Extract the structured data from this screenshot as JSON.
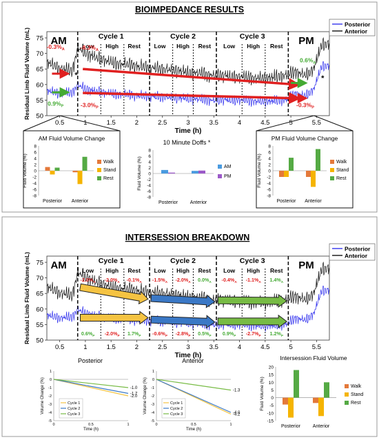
{
  "panels": {
    "top_title": "BIOIMPEDANCE RESULTS",
    "bottom_title": "INTERSESSION BREAKDOWN"
  },
  "legend": {
    "posterior": "Posterior",
    "anterior": "Anterior"
  },
  "colors": {
    "posterior": "#3333ee",
    "anterior": "#111111",
    "red": "#e02020",
    "green": "#44aa33",
    "walk": "#e4793a",
    "stand": "#f5b400",
    "rest": "#55aa44",
    "am": "#4a9be0",
    "pm": "#9b59c8",
    "cycle1": "#f5c342",
    "cycle2": "#3a78c6",
    "cycle3": "#77bb44"
  },
  "main_chart": {
    "ylabel": "Residual Limb Fluid Volume (mL)",
    "xlabel": "Time (h)",
    "yticks": [
      "50",
      "55",
      "60",
      "65",
      "70",
      "75"
    ],
    "xticks": [
      "0.5",
      "1",
      "1.5",
      "2",
      "2.5",
      "3",
      "3.5",
      "4",
      "4.5",
      "5",
      "5.5"
    ],
    "session_labels": {
      "am": "AM",
      "pm": "PM"
    },
    "cycles": [
      {
        "name": "Cycle 1",
        "phases": [
          "Low",
          "High",
          "Rest"
        ]
      },
      {
        "name": "Cycle 2",
        "phases": [
          "Low",
          "High",
          "Rest"
        ]
      },
      {
        "name": "Cycle 3",
        "phases": [
          "Low",
          "High",
          "Rest"
        ]
      }
    ],
    "star": "*"
  },
  "top_annotations": {
    "am_anterior": "-0.3%",
    "am_anterior_sub": "A",
    "am_posterior": "0.9%",
    "am_posterior_sub": "P",
    "c1_anterior": "-8.3%",
    "c1_anterior_sub": "A",
    "c1_posterior": "-3.0%",
    "c1_posterior_sub": "P",
    "pm_anterior": "0.6%",
    "pm_anterior_sub": "A",
    "pm_posterior": "-0.3%",
    "pm_posterior_sub": "P"
  },
  "bottom_annotations": {
    "upper": [
      {
        "text": "-2.0%",
        "sub": "A",
        "color": "red"
      },
      {
        "text": "-2.0%",
        "sub": "A",
        "color": "red"
      },
      {
        "text": "-0.1%",
        "sub": "A",
        "color": "red"
      },
      {
        "text": "-1.5%",
        "sub": "A",
        "color": "red"
      },
      {
        "text": "-2.0%",
        "sub": "A",
        "color": "red"
      },
      {
        "text": "0.0%",
        "sub": "A",
        "color": "green"
      },
      {
        "text": "-0.4%",
        "sub": "A",
        "color": "red"
      },
      {
        "text": "-1.1%",
        "sub": "A",
        "color": "red"
      },
      {
        "text": "1.4%",
        "sub": "A",
        "color": "green"
      }
    ],
    "lower": [
      {
        "text": "0.6%",
        "sub": "P",
        "color": "green"
      },
      {
        "text": "-2.0%",
        "sub": "P",
        "color": "red"
      },
      {
        "text": "1.7%",
        "sub": "P",
        "color": "green"
      },
      {
        "text": "-0.6%",
        "sub": "P",
        "color": "red"
      },
      {
        "text": "-2.8%",
        "sub": "P",
        "color": "red"
      },
      {
        "text": "0.5%",
        "sub": "P",
        "color": "green"
      },
      {
        "text": "0.9%",
        "sub": "P",
        "color": "green"
      },
      {
        "text": "-2.7%",
        "sub": "P",
        "color": "red"
      },
      {
        "text": "1.2%",
        "sub": "P",
        "color": "green"
      }
    ]
  },
  "chart_data": [
    {
      "type": "line",
      "title": "BIOIMPEDANCE RESULTS",
      "xlabel": "Time (h)",
      "ylabel": "Residual Limb Fluid Volume (mL)",
      "xlim": [
        0.25,
        5.75
      ],
      "ylim": [
        50,
        77
      ],
      "series": [
        {
          "name": "Posterior",
          "x": [
            0.3,
            0.5,
            0.75,
            0.85,
            1.0,
            1.5,
            2.0,
            2.5,
            3.0,
            3.5,
            4.0,
            4.5,
            4.9,
            5.1,
            5.3,
            5.45,
            5.6
          ],
          "y": [
            58,
            57,
            57.5,
            60,
            58.5,
            57,
            56.5,
            56,
            55.5,
            55,
            55,
            54.5,
            55,
            57,
            56.5,
            58.5,
            66
          ]
        },
        {
          "name": "Anterior",
          "x": [
            0.3,
            0.5,
            0.75,
            0.85,
            1.0,
            1.5,
            2.0,
            2.5,
            3.0,
            3.5,
            4.0,
            4.5,
            4.9,
            5.1,
            5.3,
            5.45,
            5.6
          ],
          "y": [
            67,
            65,
            64.5,
            72,
            70,
            67,
            66,
            65,
            64,
            63,
            62.5,
            62,
            63,
            64,
            63,
            65,
            73
          ]
        }
      ]
    },
    {
      "type": "bar",
      "title": "AM Fluid Volume Change",
      "ylabel": "Fluid Volume (%)",
      "ylim": [
        -8,
        8
      ],
      "yticks": [
        "8",
        "6",
        "4",
        "2",
        "0",
        "-2",
        "-4",
        "-6",
        "-8"
      ],
      "categories": [
        "Posterior",
        "Anterior"
      ],
      "series": [
        {
          "name": "Walk",
          "values": [
            1.2,
            -0.5
          ]
        },
        {
          "name": "Stand",
          "values": [
            -1.2,
            -4.3
          ]
        },
        {
          "name": "Rest",
          "values": [
            1.0,
            4.5
          ]
        }
      ]
    },
    {
      "type": "bar",
      "title": "10 Minute Doffs",
      "star": "*",
      "ylabel": "Fluid Volume (%)",
      "ylim": [
        -8,
        8
      ],
      "yticks": [
        "8",
        "6",
        "4",
        "2",
        "0",
        "-2",
        "-4",
        "-6",
        "-8"
      ],
      "categories": [
        "Posterior",
        "Anterior"
      ],
      "series": [
        {
          "name": "AM",
          "values": [
            1.2,
            0.9
          ]
        },
        {
          "name": "PM",
          "values": [
            0.3,
            1.0
          ]
        }
      ]
    },
    {
      "type": "bar",
      "title": "PM Fluid Volume Change",
      "ylabel": "Fluid Volume (%)",
      "ylim": [
        -8,
        8
      ],
      "yticks": [
        "8",
        "6",
        "4",
        "2",
        "0",
        "-2",
        "-4",
        "-6",
        "-8"
      ],
      "categories": [
        "Posterior",
        "Anterior"
      ],
      "series": [
        {
          "name": "Walk",
          "values": [
            -2.0,
            -2.0
          ]
        },
        {
          "name": "Stand",
          "values": [
            -2.0,
            -5.2
          ]
        },
        {
          "name": "Rest",
          "values": [
            4.2,
            7.0
          ]
        }
      ]
    },
    {
      "type": "line",
      "title": "INTERSESSION BREAKDOWN",
      "xlabel": "Time (h)",
      "ylabel": "Residual Limb Fluid Volume (mL)",
      "xlim": [
        0.25,
        5.75
      ],
      "ylim": [
        50,
        77
      ],
      "series": [
        {
          "name": "Posterior",
          "x": [
            0.3,
            0.5,
            0.75,
            0.85,
            1.0,
            1.5,
            2.0,
            2.5,
            3.0,
            3.5,
            4.0,
            4.5,
            4.9,
            5.1,
            5.3,
            5.45,
            5.6
          ],
          "y": [
            58,
            57,
            57.5,
            60,
            58.5,
            57,
            56.5,
            56,
            55.5,
            55,
            55,
            54.5,
            55,
            57,
            56.5,
            58.5,
            66
          ]
        },
        {
          "name": "Anterior",
          "x": [
            0.3,
            0.5,
            0.75,
            0.85,
            1.0,
            1.5,
            2.0,
            2.5,
            3.0,
            3.5,
            4.0,
            4.5,
            4.9,
            5.1,
            5.3,
            5.45,
            5.6
          ],
          "y": [
            67,
            65,
            64.5,
            72,
            70,
            67,
            66,
            65,
            64,
            63,
            62.5,
            62,
            63,
            64,
            63,
            65,
            73
          ]
        }
      ]
    },
    {
      "type": "line",
      "title": "Posterior",
      "xlabel": "Time (h)",
      "ylabel": "Volume Change (%)",
      "xlim": [
        0,
        1
      ],
      "ylim": [
        -5,
        1
      ],
      "xticks": [
        "0",
        "0.5",
        "1"
      ],
      "yticks": [
        "1",
        "0",
        "-1",
        "-2",
        "-3",
        "-4",
        "-5"
      ],
      "series": [
        {
          "name": "Cycle 1",
          "x": [
            0,
            1
          ],
          "y": [
            0,
            -2.0
          ],
          "end_label": "-2.0"
        },
        {
          "name": "Cycle 2",
          "x": [
            0,
            1
          ],
          "y": [
            0,
            -1.7
          ],
          "end_label": "-1.7"
        },
        {
          "name": "Cycle 3",
          "x": [
            0,
            1
          ],
          "y": [
            0,
            -1.0
          ],
          "end_label": "-1.0"
        }
      ]
    },
    {
      "type": "line",
      "title": "Anterior",
      "xlabel": "Time (h)",
      "ylabel": "Volume Change (%)",
      "xlim": [
        0,
        1
      ],
      "ylim": [
        -5,
        1
      ],
      "xticks": [
        "0",
        "0.5",
        "1"
      ],
      "yticks": [
        "1",
        "0",
        "-1",
        "-2",
        "-3",
        "-4",
        "-5"
      ],
      "series": [
        {
          "name": "Cycle 1",
          "x": [
            0,
            1
          ],
          "y": [
            0,
            -4.2
          ],
          "end_label": "-4.2"
        },
        {
          "name": "Cycle 2",
          "x": [
            0,
            1
          ],
          "y": [
            0,
            -4.0
          ],
          "end_label": "-4.0"
        },
        {
          "name": "Cycle 3",
          "x": [
            0,
            1
          ],
          "y": [
            0,
            -1.3
          ],
          "end_label": "-1.3"
        }
      ]
    },
    {
      "type": "bar",
      "title": "Intersession Fluid Volume",
      "ylabel": "Fluid Volume (%)",
      "ylim": [
        -15,
        20
      ],
      "yticks": [
        "20",
        "15",
        "10",
        "5",
        "0",
        "-5",
        "-10",
        "-15"
      ],
      "categories": [
        "Posterior",
        "Anterior"
      ],
      "series": [
        {
          "name": "Walk",
          "values": [
            -4.5,
            -3.5
          ]
        },
        {
          "name": "Stand",
          "values": [
            -13,
            -12
          ]
        },
        {
          "name": "Rest",
          "values": [
            18,
            10
          ]
        }
      ]
    }
  ]
}
